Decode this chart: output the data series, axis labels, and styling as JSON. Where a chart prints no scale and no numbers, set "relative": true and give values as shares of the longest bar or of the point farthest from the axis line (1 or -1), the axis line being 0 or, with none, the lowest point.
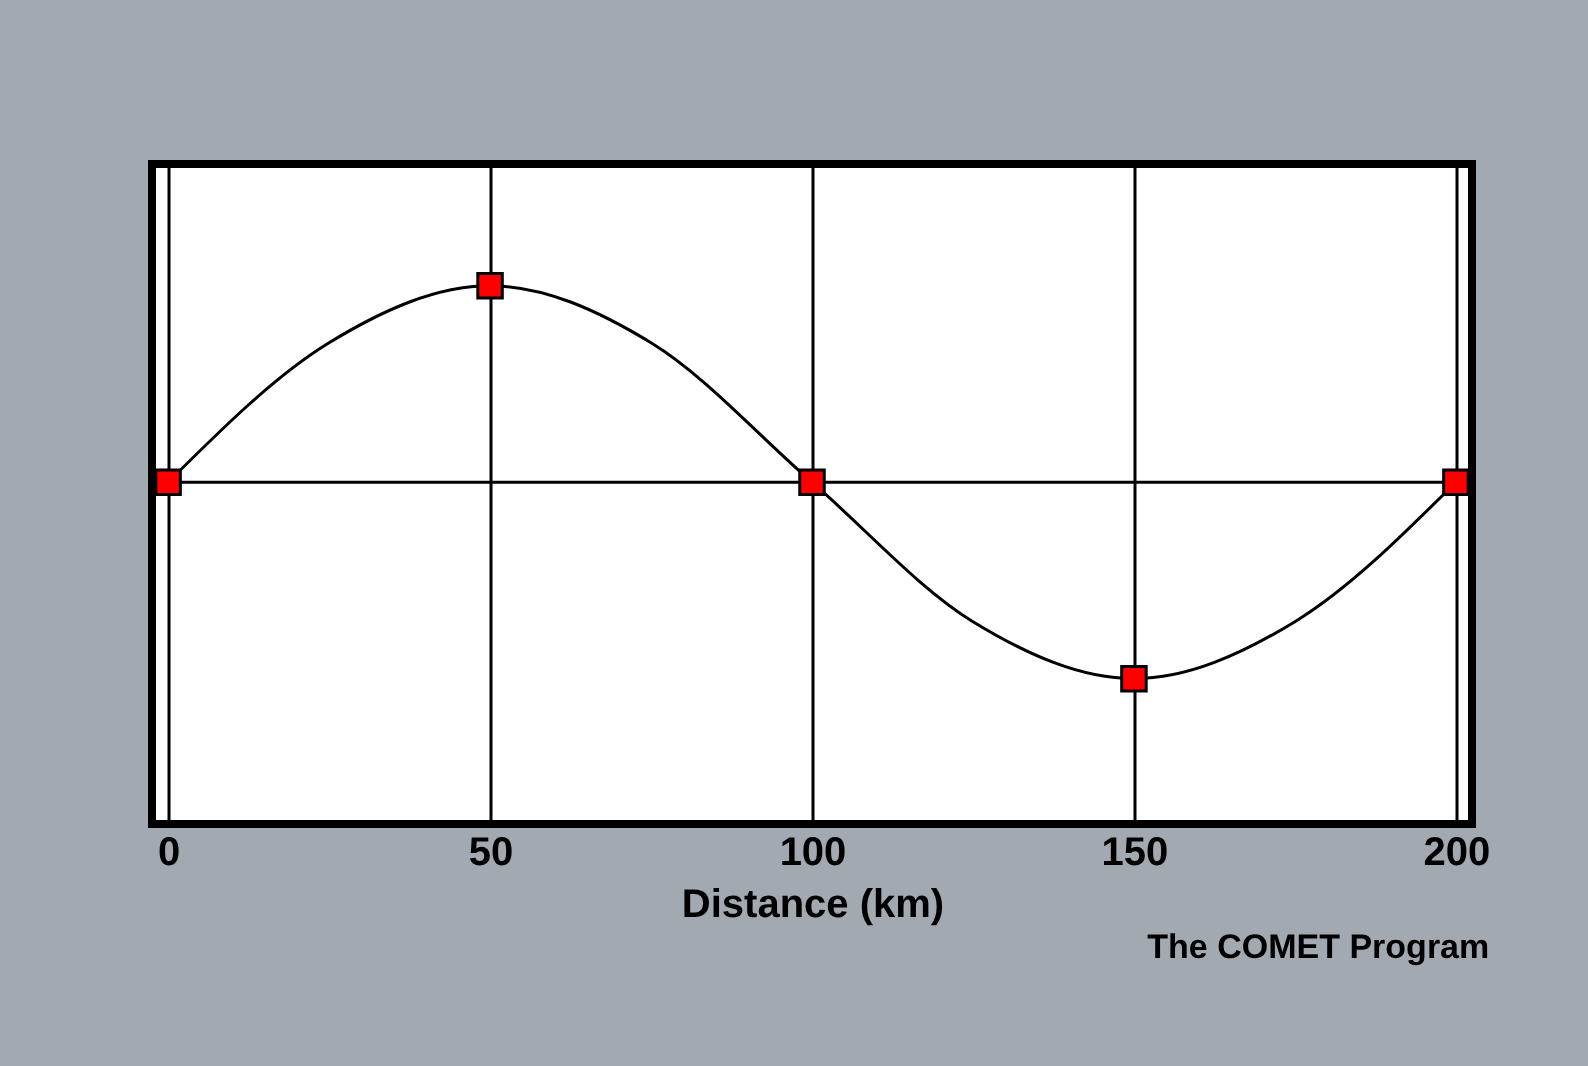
{
  "chart_data": {
    "type": "line",
    "relative": true,
    "xlabel": "Distance (km)",
    "xlim": [
      -2.5,
      202.5
    ],
    "xticks": [
      0,
      50,
      100,
      150,
      200
    ],
    "grid": "x",
    "annotations": [
      "The COMET Program"
    ],
    "series": [
      {
        "type": "line",
        "color": "#000000",
        "marker": "none",
        "x": [
          0,
          25,
          50,
          75,
          100,
          125,
          150,
          175,
          200
        ],
        "values": [
          0,
          0.71,
          1,
          0.71,
          0,
          -0.71,
          -1,
          -0.71,
          0
        ]
      },
      {
        "type": "scatter",
        "color": "#ff0000",
        "marker": "square",
        "x": [
          0,
          50,
          100,
          150,
          200
        ],
        "values": [
          0,
          1,
          0,
          -1,
          0
        ]
      }
    ]
  }
}
